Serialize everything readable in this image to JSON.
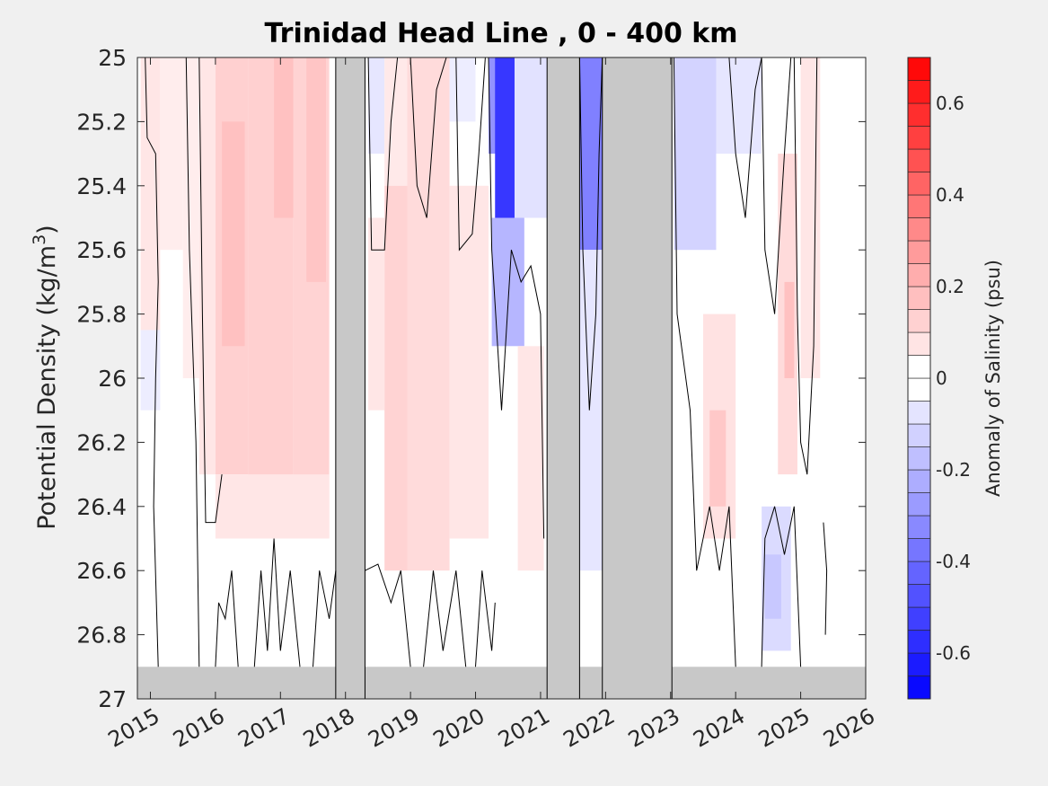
{
  "chart_data": {
    "type": "heatmap",
    "title": "Trinidad Head Line , 0 - 400 km",
    "ylabel_main": "Potential Density (kg/m",
    "ylabel_sup": "3",
    "ylabel_close": ")",
    "colorbar_label": "Anomaly of Salinity (psu)",
    "x_ticks": [
      "2015",
      "2016",
      "2017",
      "2018",
      "2019",
      "2020",
      "2021",
      "2022",
      "2023",
      "2024",
      "2025",
      "2026"
    ],
    "x_range": [
      2014.8,
      2026.0
    ],
    "y_ticks": [
      "25",
      "25.2",
      "25.4",
      "25.6",
      "25.8",
      "26",
      "26.2",
      "26.4",
      "26.6",
      "26.8",
      "27"
    ],
    "y_range": [
      25.0,
      27.0
    ],
    "y_reversed": true,
    "colorbar_ticks": [
      "0.6",
      "0.4",
      "0.2",
      "0",
      "-0.2",
      "-0.4",
      "-0.6"
    ],
    "colorbar_tick_values": [
      0.6,
      0.4,
      0.2,
      0,
      -0.2,
      -0.4,
      -0.6
    ],
    "colorbar_range": [
      -0.7,
      0.7
    ],
    "colorbar_step": 0.05,
    "no_data_color": "#c8c8c8",
    "positive_color": "#ff0000",
    "negative_color": "#0000ff",
    "no_data_intervals": [
      [
        2017.85,
        2018.3
      ],
      [
        2021.1,
        2021.6
      ],
      [
        2021.95,
        2023.02
      ]
    ],
    "no_data_below_density": 26.9,
    "fields": [
      {
        "x": [
          2014.85,
          2015.15
        ],
        "y": [
          25.0,
          25.85
        ],
        "value": 0.07
      },
      {
        "x": [
          2014.85,
          2015.15
        ],
        "y": [
          25.85,
          26.1
        ],
        "value": -0.05
      },
      {
        "x": [
          2015.15,
          2015.5
        ],
        "y": [
          25.0,
          25.6
        ],
        "value": 0.05
      },
      {
        "x": [
          2015.5,
          2015.75
        ],
        "y": [
          25.0,
          26.0
        ],
        "value": 0.05
      },
      {
        "x": [
          2015.75,
          2016.0
        ],
        "y": [
          25.0,
          26.3
        ],
        "value": 0.07
      },
      {
        "x": [
          2016.0,
          2016.5
        ],
        "y": [
          25.0,
          26.3
        ],
        "value": 0.13
      },
      {
        "x": [
          2016.1,
          2016.45
        ],
        "y": [
          25.2,
          25.9
        ],
        "value": 0.17
      },
      {
        "x": [
          2016.5,
          2017.2
        ],
        "y": [
          25.0,
          26.35
        ],
        "value": 0.13
      },
      {
        "x": [
          2016.9,
          2017.2
        ],
        "y": [
          25.0,
          25.5
        ],
        "value": 0.17
      },
      {
        "x": [
          2017.2,
          2017.75
        ],
        "y": [
          25.0,
          26.5
        ],
        "value": 0.12
      },
      {
        "x": [
          2017.4,
          2017.7
        ],
        "y": [
          25.0,
          25.7
        ],
        "value": 0.16
      },
      {
        "x": [
          2016.0,
          2017.75
        ],
        "y": [
          26.3,
          26.5
        ],
        "value": 0.07
      },
      {
        "x": [
          2018.35,
          2018.6
        ],
        "y": [
          25.5,
          26.1
        ],
        "value": 0.07
      },
      {
        "x": [
          2018.35,
          2018.6
        ],
        "y": [
          25.0,
          25.3
        ],
        "value": -0.07
      },
      {
        "x": [
          2018.6,
          2018.95
        ],
        "y": [
          25.0,
          25.4
        ],
        "value": 0.06
      },
      {
        "x": [
          2018.6,
          2018.95
        ],
        "y": [
          25.4,
          26.6
        ],
        "value": 0.12
      },
      {
        "x": [
          2018.95,
          2019.6
        ],
        "y": [
          25.0,
          26.6
        ],
        "value": 0.1
      },
      {
        "x": [
          2019.6,
          2020.2
        ],
        "y": [
          25.4,
          26.5
        ],
        "value": 0.07
      },
      {
        "x": [
          2019.6,
          2020.0
        ],
        "y": [
          25.0,
          25.2
        ],
        "value": -0.05
      },
      {
        "x": [
          2020.2,
          2020.8
        ],
        "y": [
          25.0,
          25.3
        ],
        "value": -0.3
      },
      {
        "x": [
          2020.3,
          2020.6
        ],
        "y": [
          25.0,
          25.5
        ],
        "value": -0.55
      },
      {
        "x": [
          2020.25,
          2020.75
        ],
        "y": [
          25.5,
          25.9
        ],
        "value": -0.2
      },
      {
        "x": [
          2020.6,
          2021.1
        ],
        "y": [
          25.0,
          25.5
        ],
        "value": -0.08
      },
      {
        "x": [
          2020.65,
          2021.05
        ],
        "y": [
          25.9,
          26.6
        ],
        "value": 0.07
      },
      {
        "x": [
          2021.6,
          2021.95
        ],
        "y": [
          25.0,
          25.6
        ],
        "value": -0.35
      },
      {
        "x": [
          2021.6,
          2021.95
        ],
        "y": [
          25.6,
          26.6
        ],
        "value": -0.07
      },
      {
        "x": [
          2023.05,
          2023.7
        ],
        "y": [
          25.0,
          25.6
        ],
        "value": -0.12
      },
      {
        "x": [
          2023.7,
          2024.4
        ],
        "y": [
          25.0,
          25.3
        ],
        "value": -0.07
      },
      {
        "x": [
          2023.5,
          2024.0
        ],
        "y": [
          25.8,
          26.5
        ],
        "value": 0.08
      },
      {
        "x": [
          2023.6,
          2023.85
        ],
        "y": [
          26.1,
          26.4
        ],
        "value": 0.15
      },
      {
        "x": [
          2024.4,
          2024.85
        ],
        "y": [
          26.4,
          26.85
        ],
        "value": -0.1
      },
      {
        "x": [
          2024.45,
          2024.7
        ],
        "y": [
          26.55,
          26.75
        ],
        "value": -0.15
      },
      {
        "x": [
          2024.65,
          2024.95
        ],
        "y": [
          25.3,
          26.3
        ],
        "value": 0.1
      },
      {
        "x": [
          2024.75,
          2024.9
        ],
        "y": [
          25.7,
          26.0
        ],
        "value": 0.17
      },
      {
        "x": [
          2025.0,
          2025.3
        ],
        "y": [
          25.0,
          26.0
        ],
        "value": 0.07
      }
    ],
    "zero_contours": [
      [
        [
          2014.92,
          25.0
        ],
        [
          2014.95,
          25.25
        ],
        [
          2015.08,
          25.3
        ],
        [
          2015.12,
          25.7
        ],
        [
          2015.08,
          26.0
        ],
        [
          2015.05,
          26.4
        ],
        [
          2015.12,
          26.9
        ]
      ],
      [
        [
          2015.55,
          25.0
        ],
        [
          2015.6,
          25.6
        ],
        [
          2015.7,
          26.2
        ],
        [
          2015.75,
          26.9
        ]
      ],
      [
        [
          2015.75,
          25.0
        ],
        [
          2015.8,
          25.8
        ],
        [
          2015.85,
          26.45
        ],
        [
          2016.0,
          26.45
        ],
        [
          2016.1,
          26.3
        ]
      ],
      [
        [
          2016.0,
          26.9
        ],
        [
          2016.05,
          26.7
        ],
        [
          2016.15,
          26.75
        ],
        [
          2016.25,
          26.6
        ],
        [
          2016.35,
          26.9
        ]
      ],
      [
        [
          2016.6,
          26.9
        ],
        [
          2016.7,
          26.6
        ],
        [
          2016.8,
          26.85
        ],
        [
          2016.9,
          26.5
        ],
        [
          2017.0,
          26.85
        ],
        [
          2017.15,
          26.6
        ],
        [
          2017.3,
          26.9
        ]
      ],
      [
        [
          2017.5,
          26.9
        ],
        [
          2017.6,
          26.6
        ],
        [
          2017.75,
          26.75
        ],
        [
          2017.85,
          26.6
        ]
      ],
      [
        [
          2018.3,
          26.6
        ],
        [
          2018.5,
          26.58
        ],
        [
          2018.7,
          26.7
        ],
        [
          2018.85,
          26.6
        ],
        [
          2019.0,
          26.9
        ]
      ],
      [
        [
          2019.2,
          26.9
        ],
        [
          2019.35,
          26.6
        ],
        [
          2019.5,
          26.85
        ],
        [
          2019.7,
          26.6
        ],
        [
          2019.85,
          26.9
        ]
      ],
      [
        [
          2020.0,
          26.9
        ],
        [
          2020.1,
          26.6
        ],
        [
          2020.25,
          26.85
        ],
        [
          2020.3,
          26.7
        ]
      ],
      [
        [
          2018.35,
          25.0
        ],
        [
          2018.4,
          25.6
        ],
        [
          2018.6,
          25.6
        ],
        [
          2018.7,
          25.2
        ],
        [
          2018.8,
          25.0
        ]
      ],
      [
        [
          2019.0,
          25.0
        ],
        [
          2019.1,
          25.4
        ],
        [
          2019.25,
          25.5
        ],
        [
          2019.4,
          25.1
        ],
        [
          2019.55,
          25.0
        ]
      ],
      [
        [
          2019.7,
          25.0
        ],
        [
          2019.75,
          25.6
        ],
        [
          2019.95,
          25.55
        ],
        [
          2020.05,
          25.3
        ],
        [
          2020.15,
          25.0
        ]
      ],
      [
        [
          2020.2,
          25.0
        ],
        [
          2020.25,
          25.6
        ],
        [
          2020.4,
          26.1
        ],
        [
          2020.55,
          25.6
        ],
        [
          2020.7,
          25.7
        ],
        [
          2020.85,
          25.65
        ],
        [
          2021.0,
          25.8
        ],
        [
          2021.05,
          26.5
        ]
      ],
      [
        [
          2021.6,
          25.0
        ],
        [
          2021.65,
          25.6
        ],
        [
          2021.75,
          26.1
        ],
        [
          2021.85,
          25.8
        ],
        [
          2021.9,
          25.3
        ],
        [
          2021.95,
          25.0
        ]
      ],
      [
        [
          2023.05,
          25.0
        ],
        [
          2023.1,
          25.8
        ],
        [
          2023.3,
          26.1
        ],
        [
          2023.4,
          26.6
        ],
        [
          2023.6,
          26.4
        ],
        [
          2023.75,
          26.6
        ],
        [
          2023.9,
          26.4
        ],
        [
          2024.0,
          26.9
        ]
      ],
      [
        [
          2023.9,
          25.0
        ],
        [
          2024.0,
          25.3
        ],
        [
          2024.15,
          25.5
        ],
        [
          2024.3,
          25.1
        ],
        [
          2024.4,
          25.0
        ]
      ],
      [
        [
          2024.4,
          26.9
        ],
        [
          2024.45,
          26.5
        ],
        [
          2024.6,
          26.4
        ],
        [
          2024.75,
          26.55
        ],
        [
          2024.9,
          26.4
        ],
        [
          2025.0,
          26.9
        ]
      ],
      [
        [
          2024.4,
          25.0
        ],
        [
          2024.45,
          25.6
        ],
        [
          2024.6,
          25.8
        ],
        [
          2024.75,
          25.3
        ],
        [
          2024.85,
          25.0
        ]
      ],
      [
        [
          2024.9,
          25.0
        ],
        [
          2024.95,
          25.8
        ],
        [
          2025.0,
          26.2
        ],
        [
          2025.1,
          26.3
        ],
        [
          2025.2,
          25.9
        ],
        [
          2025.25,
          25.0
        ]
      ],
      [
        [
          2025.35,
          26.45
        ],
        [
          2025.4,
          26.6
        ],
        [
          2025.38,
          26.8
        ]
      ]
    ]
  }
}
